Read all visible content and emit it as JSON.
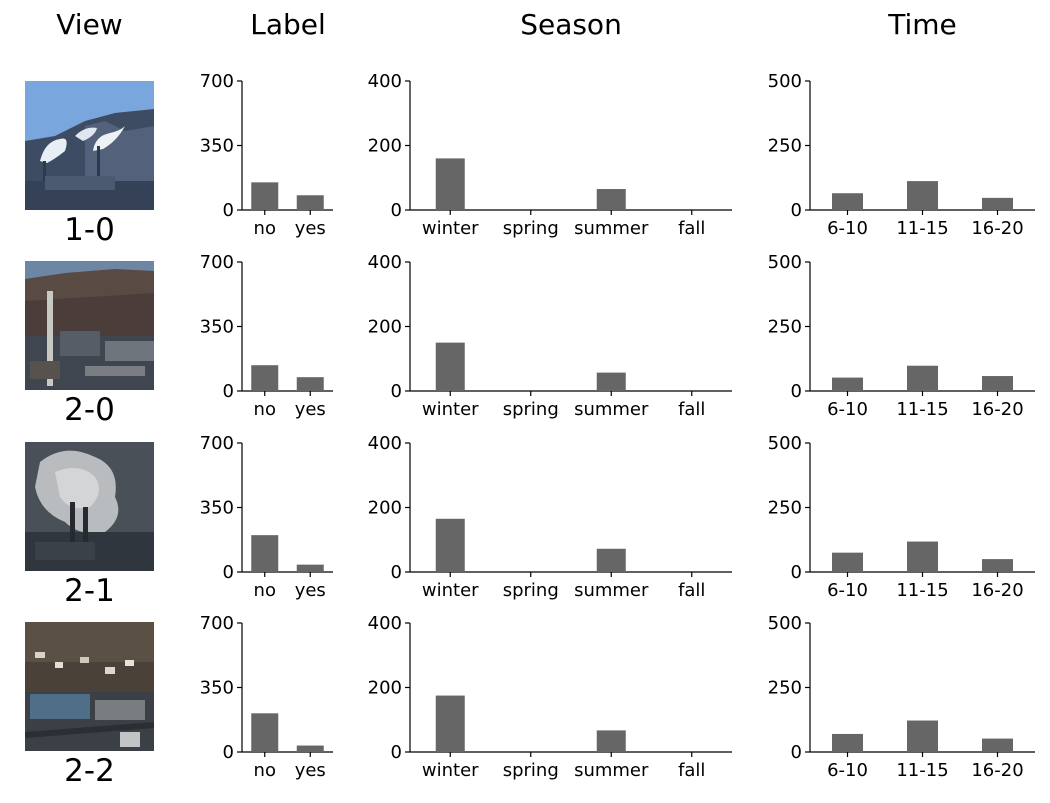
{
  "headers": {
    "view": "View",
    "label": "Label",
    "season": "Season",
    "time": "Time"
  },
  "chart_data": [
    {
      "type": "bar",
      "title": "Label",
      "view": "1-0",
      "categories": [
        "no",
        "yes"
      ],
      "values": [
        150,
        80
      ],
      "ylim": [
        0,
        700
      ],
      "yticks": [
        0,
        350,
        700
      ]
    },
    {
      "type": "bar",
      "title": "Season",
      "view": "1-0",
      "categories": [
        "winter",
        "spring",
        "summer",
        "fall"
      ],
      "values": [
        160,
        0,
        65,
        0
      ],
      "ylim": [
        0,
        400
      ],
      "yticks": [
        0,
        200,
        400
      ]
    },
    {
      "type": "bar",
      "title": "Time",
      "view": "1-0",
      "categories": [
        "6-10",
        "11-15",
        "16-20"
      ],
      "values": [
        65,
        112,
        47
      ],
      "ylim": [
        0,
        500
      ],
      "yticks": [
        0,
        250,
        500
      ]
    },
    {
      "type": "bar",
      "title": "Label",
      "view": "2-0",
      "categories": [
        "no",
        "yes"
      ],
      "values": [
        140,
        75
      ],
      "ylim": [
        0,
        700
      ],
      "yticks": [
        0,
        350,
        700
      ]
    },
    {
      "type": "bar",
      "title": "Season",
      "view": "2-0",
      "categories": [
        "winter",
        "spring",
        "summer",
        "fall"
      ],
      "values": [
        150,
        0,
        57,
        0
      ],
      "ylim": [
        0,
        400
      ],
      "yticks": [
        0,
        200,
        400
      ]
    },
    {
      "type": "bar",
      "title": "Time",
      "view": "2-0",
      "categories": [
        "6-10",
        "11-15",
        "16-20"
      ],
      "values": [
        52,
        98,
        58
      ],
      "ylim": [
        0,
        500
      ],
      "yticks": [
        0,
        250,
        500
      ]
    },
    {
      "type": "bar",
      "title": "Label",
      "view": "2-1",
      "categories": [
        "no",
        "yes"
      ],
      "values": [
        200,
        40
      ],
      "ylim": [
        0,
        700
      ],
      "yticks": [
        0,
        350,
        700
      ]
    },
    {
      "type": "bar",
      "title": "Season",
      "view": "2-1",
      "categories": [
        "winter",
        "spring",
        "summer",
        "fall"
      ],
      "values": [
        165,
        0,
        72,
        0
      ],
      "ylim": [
        0,
        400
      ],
      "yticks": [
        0,
        200,
        400
      ]
    },
    {
      "type": "bar",
      "title": "Time",
      "view": "2-1",
      "categories": [
        "6-10",
        "11-15",
        "16-20"
      ],
      "values": [
        75,
        118,
        50
      ],
      "ylim": [
        0,
        500
      ],
      "yticks": [
        0,
        250,
        500
      ]
    },
    {
      "type": "bar",
      "title": "Label",
      "view": "2-2",
      "categories": [
        "no",
        "yes"
      ],
      "values": [
        210,
        35
      ],
      "ylim": [
        0,
        700
      ],
      "yticks": [
        0,
        350,
        700
      ]
    },
    {
      "type": "bar",
      "title": "Season",
      "view": "2-2",
      "categories": [
        "winter",
        "spring",
        "summer",
        "fall"
      ],
      "values": [
        175,
        0,
        67,
        0
      ],
      "ylim": [
        0,
        400
      ],
      "yticks": [
        0,
        200,
        400
      ]
    },
    {
      "type": "bar",
      "title": "Time",
      "view": "2-2",
      "categories": [
        "6-10",
        "11-15",
        "16-20"
      ],
      "values": [
        70,
        122,
        52
      ],
      "ylim": [
        0,
        500
      ],
      "yticks": [
        0,
        250,
        500
      ]
    }
  ],
  "views": [
    {
      "label": "1-0",
      "photo": "smokestacks-emitting-plumes-over-hillside"
    },
    {
      "label": "2-0",
      "photo": "industrial-plant-below-town-hillside"
    },
    {
      "label": "2-1",
      "photo": "dense-smoke-cloud-over-plant"
    },
    {
      "label": "2-2",
      "photo": "town-and-plant-roofs-aerial"
    }
  ],
  "colors": {
    "bar": "#666666",
    "axis": "#000000"
  }
}
